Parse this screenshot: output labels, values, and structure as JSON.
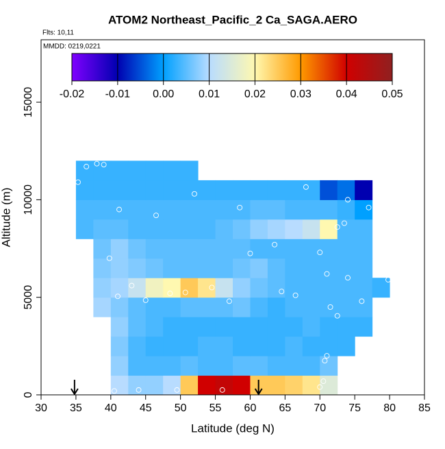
{
  "chart_data": {
    "type": "heatmap",
    "title": "ATOM2 Northeast_Pacific_2 Ca_SAGA.AERO",
    "subtitle": "Flts: 10,11",
    "annotation": "MMDD: 0219,0221",
    "xlabel": "Latitude (deg N)",
    "ylabel": "Altitude (m)",
    "xlim": [
      30,
      85
    ],
    "ylim": [
      0,
      18200
    ],
    "xticks": [
      30,
      35,
      40,
      45,
      50,
      55,
      60,
      65,
      70,
      75,
      80,
      85
    ],
    "yticks": [
      0,
      5000,
      10000,
      15000
    ],
    "zlim": [
      -0.02,
      0.05
    ],
    "zticks": [
      -0.02,
      -0.01,
      0.0,
      0.01,
      0.02,
      0.03,
      0.04,
      0.05
    ],
    "zticklabels": [
      "-0.02",
      "-0.01",
      "0.00",
      "0.01",
      "0.02",
      "0.03",
      "0.04",
      "0.05"
    ],
    "colorscale": [
      "#8000ff",
      "#0000b0",
      "#00a0ff",
      "#b8dcff",
      "#fff8b0",
      "#ff9a00",
      "#d00000",
      "#902020"
    ],
    "x_edges": [
      35,
      37.5,
      40,
      42.5,
      45,
      47.5,
      50,
      52.5,
      55,
      57.5,
      60,
      62.5,
      65,
      67.5,
      70,
      72.5,
      75,
      77.5,
      80
    ],
    "y_edges": [
      0,
      1000,
      2000,
      3000,
      4000,
      5000,
      6000,
      7000,
      8000,
      9000,
      10000,
      11000,
      12000
    ],
    "z": [
      [
        null,
        null,
        0.01,
        0.008,
        0.008,
        0.01,
        0.025,
        0.04,
        0.042,
        0.04,
        0.025,
        0.025,
        0.024,
        0.022,
        0.015,
        null,
        null,
        null
      ],
      [
        null,
        null,
        0.008,
        0.004,
        0.004,
        0.004,
        0.005,
        0.004,
        0.004,
        0.005,
        0.005,
        0.004,
        0.004,
        0.004,
        0.006,
        null,
        null,
        null
      ],
      [
        null,
        null,
        0.007,
        0.004,
        0.003,
        0.003,
        0.003,
        0.004,
        0.004,
        0.003,
        0.003,
        0.003,
        0.004,
        0.003,
        0.003,
        0.003,
        null,
        null
      ],
      [
        null,
        null,
        0.008,
        0.005,
        0.004,
        0.003,
        0.003,
        0.003,
        0.003,
        0.003,
        0.003,
        0.003,
        0.003,
        0.004,
        0.003,
        0.003,
        0.003,
        null
      ],
      [
        null,
        0.009,
        0.007,
        0.005,
        0.004,
        0.004,
        0.005,
        0.005,
        0.005,
        0.006,
        0.004,
        0.003,
        0.004,
        0.004,
        0.004,
        0.004,
        0.004,
        null
      ],
      [
        null,
        0.008,
        0.009,
        0.012,
        0.018,
        0.02,
        0.025,
        0.022,
        0.012,
        0.008,
        0.006,
        0.005,
        0.004,
        0.004,
        0.004,
        0.004,
        0.004,
        0.003
      ],
      [
        null,
        0.007,
        0.008,
        0.007,
        0.006,
        0.005,
        0.005,
        0.005,
        0.005,
        0.006,
        0.007,
        0.005,
        0.004,
        0.004,
        0.004,
        0.004,
        0.004,
        null
      ],
      [
        null,
        0.006,
        0.008,
        0.006,
        0.005,
        0.005,
        0.005,
        0.005,
        0.005,
        0.005,
        0.004,
        0.004,
        0.004,
        0.004,
        0.004,
        0.004,
        0.004,
        null
      ],
      [
        0.004,
        0.005,
        0.005,
        0.004,
        0.004,
        0.004,
        0.004,
        0.004,
        0.005,
        0.006,
        0.008,
        0.009,
        0.01,
        0.012,
        0.02,
        0.004,
        0.004,
        null
      ],
      [
        0.004,
        0.004,
        0.004,
        0.004,
        0.004,
        0.004,
        0.004,
        0.004,
        0.004,
        0.004,
        0.005,
        0.005,
        0.004,
        0.004,
        0.004,
        0.003,
        0.0,
        null
      ],
      [
        0.003,
        0.003,
        0.003,
        0.003,
        0.003,
        0.003,
        0.003,
        0.003,
        0.003,
        0.003,
        0.003,
        0.003,
        0.003,
        0.003,
        -0.005,
        -0.003,
        -0.01,
        null
      ],
      [
        0.003,
        0.003,
        0.003,
        0.003,
        0.003,
        0.003,
        0.003,
        null,
        null,
        null,
        null,
        null,
        null,
        null,
        null,
        null,
        null,
        null
      ]
    ],
    "points": {
      "x": [
        36.5,
        38,
        39,
        35.3,
        41.2,
        46.5,
        52,
        58.5,
        68,
        74,
        77,
        78,
        73.5,
        72.5,
        70,
        63.5,
        60,
        39.8,
        43,
        41,
        45,
        48.5,
        50.7,
        54.5,
        57,
        64.5,
        66.5,
        71,
        74,
        76,
        79.8,
        71.5,
        72.5,
        71,
        70.7,
        40.5,
        44,
        49.5,
        56,
        70,
        70.5
      ],
      "y": [
        11700,
        11850,
        11800,
        10900,
        9500,
        9200,
        10300,
        9600,
        10650,
        10000,
        9600,
        9600,
        8800,
        8600,
        7300,
        7700,
        7250,
        7000,
        5600,
        5050,
        4850,
        5200,
        5250,
        5500,
        4800,
        5300,
        5100,
        6200,
        6000,
        4800,
        5900,
        4500,
        4050,
        2000,
        1750,
        200,
        250,
        250,
        250,
        400,
        700
      ]
    },
    "arrows_x": [
      34.8,
      61.2
    ]
  }
}
